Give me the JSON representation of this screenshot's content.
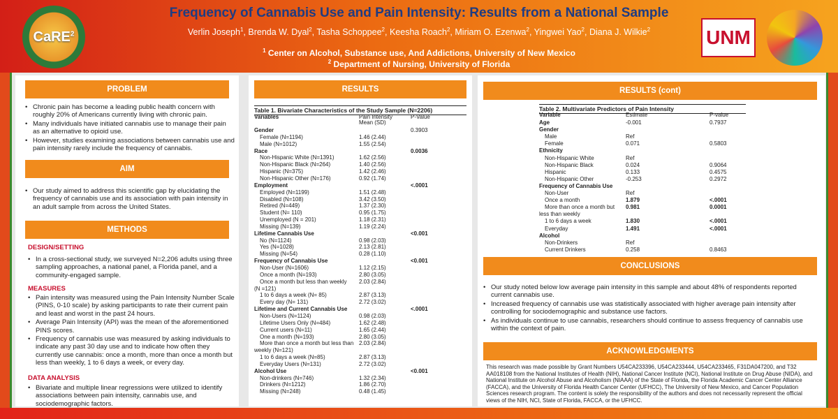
{
  "header": {
    "title": "Frequency of Cannabis Use and Pain Intensity: Results from a National Sample",
    "authors": [
      {
        "name": "Verlin Joseph",
        "sup": "1"
      },
      {
        "name": "Brenda W. Dyal",
        "sup": "2"
      },
      {
        "name": "Tasha Schoppee",
        "sup": "2"
      },
      {
        "name": "Keesha Roach",
        "sup": "2"
      },
      {
        "name": "Miriam O. Ezenwa",
        "sup": "2"
      },
      {
        "name": "Yingwei Yao",
        "sup": "2"
      },
      {
        "name": "Diana J. Wilkie",
        "sup": "2"
      }
    ],
    "affil1_sup": "1",
    "affil1": "Center on Alcohol, Substance use, And Addictions, University of New Mexico",
    "affil2_sup": "2",
    "affil2": "Department of Nursing, University of Florida",
    "logo_left": "CaRE",
    "logo_left_sup": "2",
    "logo_right": "UNM"
  },
  "col1": {
    "problem_title": "PROBLEM",
    "problem": [
      "Chronic pain has become a leading public health concern with roughly 20% of Americans currently living with chronic pain.",
      "Many individuals have initiated cannabis use to manage their pain as an alternative to opioid use.",
      "However, studies examining associations between cannabis use and pain intensity rarely include the frequency of cannabis."
    ],
    "aim_title": "AIM",
    "aim": [
      "Our study aimed to address this scientific gap by elucidating the frequency of cannabis use and its association with pain intensity in an adult sample from across the United States."
    ],
    "methods_title": "METHODS",
    "design_title": "DESIGN/SETTING",
    "design": [
      "In a cross-sectional study, we surveyed N=2,206 adults using three sampling approaches, a national panel, a Florida panel, and a community-engaged sample."
    ],
    "measures_title": "MEASURES",
    "measures": [
      "Pain intensity was measured using the Pain Intensity Number Scale (PINS, 0-10 scale) by asking participants to rate their current pain and least and worst in the past 24 hours.",
      "Average Pain Intensity (API) was the mean of the aforementioned PINS scores.",
      "Frequency of cannabis use was measured by asking individuals to indicate any past 30 day use and to indicate how often they currently use cannabis: once a month, more than once a month but less than weekly, 1 to 6 days a week, or every day."
    ],
    "analysis_title": "DATA ANALYSIS",
    "analysis": [
      "Bivariate and multiple linear regressions were utilized to identify associations between pain intensity, cannabis use, and sociodemographic factors."
    ]
  },
  "col2": {
    "results_title": "RESULTS",
    "table_caption": "Table 1. Bivariate Characteristics of the Study Sample (N=2206)",
    "h_var": "Variables",
    "h_mean1": "Pain Intensity",
    "h_mean2": "Mean (SD)",
    "h_p": "P-Value",
    "rows": [
      {
        "label": "Gender",
        "bold": true,
        "ind": false,
        "mean": "",
        "p": "0.3903",
        "pb": false
      },
      {
        "label": "Female (N=1194)",
        "bold": false,
        "ind": true,
        "mean": "1.46 (2.44)",
        "p": "",
        "pb": false
      },
      {
        "label": "Male (N=1012)",
        "bold": false,
        "ind": true,
        "mean": "1.55 (2.54)",
        "p": "",
        "pb": false
      },
      {
        "label": "Race",
        "bold": true,
        "ind": false,
        "mean": "",
        "p": "0.0036",
        "pb": true
      },
      {
        "label": "Non-Hispanic White (N=1391)",
        "bold": false,
        "ind": true,
        "mean": "1.62 (2.56)",
        "p": "",
        "pb": false
      },
      {
        "label": "Non-Hispanic Black (N=264)",
        "bold": false,
        "ind": true,
        "mean": "1.40 (2.56)",
        "p": "",
        "pb": false
      },
      {
        "label": "Hispanic (N=375)",
        "bold": false,
        "ind": true,
        "mean": "1.42 (2.46)",
        "p": "",
        "pb": false
      },
      {
        "label": "Non-Hispanic Other (N=176)",
        "bold": false,
        "ind": true,
        "mean": "0.92 (1.74)",
        "p": "",
        "pb": false
      },
      {
        "label": "Employment",
        "bold": true,
        "ind": false,
        "mean": "",
        "p": "<.0001",
        "pb": true
      },
      {
        "label": "Employed (N=1199)",
        "bold": false,
        "ind": true,
        "mean": "1.51 (2.48)",
        "p": "",
        "pb": false
      },
      {
        "label": "Disabled (N=108)",
        "bold": false,
        "ind": true,
        "mean": "3.42 (3.50)",
        "p": "",
        "pb": false
      },
      {
        "label": "Retired (N=449)",
        "bold": false,
        "ind": true,
        "mean": "1.37 (2.30)",
        "p": "",
        "pb": false
      },
      {
        "label": "Student (N= 110)",
        "bold": false,
        "ind": true,
        "mean": "0.95 (1.75)",
        "p": "",
        "pb": false
      },
      {
        "label": "Unemployed (N = 201)",
        "bold": false,
        "ind": true,
        "mean": "1.18 (2.31)",
        "p": "",
        "pb": false
      },
      {
        "label": "Missing (N=139)",
        "bold": false,
        "ind": true,
        "mean": "1.19 (2.24)",
        "p": "",
        "pb": false
      },
      {
        "label": "Lifetime Cannabis Use",
        "bold": true,
        "ind": false,
        "mean": "",
        "p": "<0.001",
        "pb": true
      },
      {
        "label": "No (N=1124)",
        "bold": false,
        "ind": true,
        "mean": "0.98 (2.03)",
        "p": "",
        "pb": false
      },
      {
        "label": "Yes (N=1028)",
        "bold": false,
        "ind": true,
        "mean": "2.13 (2.81)",
        "p": "",
        "pb": false
      },
      {
        "label": "Missing (N=54)",
        "bold": false,
        "ind": true,
        "mean": "0.28 (1.10)",
        "p": "",
        "pb": false
      },
      {
        "label": "Frequency of Cannabis Use",
        "bold": true,
        "ind": false,
        "mean": "",
        "p": "<0.001",
        "pb": true
      },
      {
        "label": "Non-User (N=1606)",
        "bold": false,
        "ind": true,
        "mean": "1.12 (2.15)",
        "p": "",
        "pb": false
      },
      {
        "label": "Once a month (N=193)",
        "bold": false,
        "ind": true,
        "mean": "2.80 (3.05)",
        "p": "",
        "pb": false
      },
      {
        "label": "Once a month but less than  weekly",
        "bold": false,
        "ind": true,
        "mean": "2.03 (2.84)",
        "p": "",
        "pb": false
      },
      {
        "label": "(N =121)",
        "bold": false,
        "ind": false,
        "mean": "",
        "p": "",
        "pb": false
      },
      {
        "label": "1 to 6 days a week (N= 85)",
        "bold": false,
        "ind": true,
        "mean": "2.87 (3.13)",
        "p": "",
        "pb": false
      },
      {
        "label": "Every day (N= 131)",
        "bold": false,
        "ind": true,
        "mean": "2.72 (3.02)",
        "p": "",
        "pb": false
      },
      {
        "label": "Lifetime and Current Cannabis Use",
        "bold": true,
        "ind": false,
        "mean": "",
        "p": "<.0001",
        "pb": true
      },
      {
        "label": "Non-Users (N=1124)",
        "bold": false,
        "ind": true,
        "mean": "0.98 (2.03)",
        "p": "",
        "pb": false
      },
      {
        "label": "Lifetime Users Only (N=484)",
        "bold": false,
        "ind": true,
        "mean": "1.62 (2.48)",
        "p": "",
        "pb": false
      },
      {
        "label": "Current users (N=11)",
        "bold": false,
        "ind": true,
        "mean": "1.65 (2.44)",
        "p": "",
        "pb": false
      },
      {
        "label": "One a month (N=193)",
        "bold": false,
        "ind": true,
        "mean": "2.80 (3.05)",
        "p": "",
        "pb": false
      },
      {
        "label": "More than once a month but less than",
        "bold": false,
        "ind": true,
        "mean": "2.03 (2.84)",
        "p": "",
        "pb": false
      },
      {
        "label": "weekly (N=121)",
        "bold": false,
        "ind": false,
        "mean": "",
        "p": "",
        "pb": false
      },
      {
        "label": "1 to 6 days a week (N=85)",
        "bold": false,
        "ind": true,
        "mean": "2.87 (3.13)",
        "p": "",
        "pb": false
      },
      {
        "label": "Everyday Users (N=131)",
        "bold": false,
        "ind": true,
        "mean": "2.72 (3.02)",
        "p": "",
        "pb": false
      },
      {
        "label": "Alcohol Use",
        "bold": true,
        "ind": false,
        "mean": "",
        "p": "<0.001",
        "pb": true
      },
      {
        "label": "Non-drinkers (N=746)",
        "bold": false,
        "ind": true,
        "mean": "1.32 (2.34)",
        "p": "",
        "pb": false
      },
      {
        "label": "Drinkers (N=1212)",
        "bold": false,
        "ind": true,
        "mean": "1.86 (2.70)",
        "p": "",
        "pb": false
      },
      {
        "label": "Missing (N=248)",
        "bold": false,
        "ind": true,
        "mean": "0.48 (1.45)",
        "p": "",
        "pb": false
      }
    ]
  },
  "col3": {
    "results_title": "RESULTS (cont)",
    "table_caption": "Table 2. Multivariate Predictors of Pain Intensity",
    "h_var": "Variable",
    "h_est": "Estimate",
    "h_p": "P-value",
    "rows": [
      {
        "label": "Age",
        "bold": true,
        "ind": false,
        "est": "-0.001",
        "eb": false,
        "p": "0.7937",
        "pb": false
      },
      {
        "label": "Gender",
        "bold": true,
        "ind": false,
        "est": "",
        "eb": false,
        "p": "",
        "pb": false
      },
      {
        "label": "Male",
        "bold": false,
        "ind": true,
        "est": "Ref",
        "eb": false,
        "p": "",
        "pb": false
      },
      {
        "label": "Female",
        "bold": false,
        "ind": true,
        "est": "0.071",
        "eb": false,
        "p": "0.5803",
        "pb": false
      },
      {
        "label": "Ethnicity",
        "bold": true,
        "ind": false,
        "est": "",
        "eb": false,
        "p": "",
        "pb": false
      },
      {
        "label": "Non-Hispanic White",
        "bold": false,
        "ind": true,
        "est": "Ref",
        "eb": false,
        "p": "",
        "pb": false
      },
      {
        "label": "Non-Hispanic Black",
        "bold": false,
        "ind": true,
        "est": "0.024",
        "eb": false,
        "p": "0.9064",
        "pb": false
      },
      {
        "label": "Hispanic",
        "bold": false,
        "ind": true,
        "est": "0.133",
        "eb": false,
        "p": "0.4575",
        "pb": false
      },
      {
        "label": "Non-Hispanic Other",
        "bold": false,
        "ind": true,
        "est": "-0.253",
        "eb": false,
        "p": "0.2972",
        "pb": false
      },
      {
        "label": "Frequency of Cannabis Use",
        "bold": true,
        "ind": false,
        "est": "",
        "eb": false,
        "p": "",
        "pb": false
      },
      {
        "label": "Non-User",
        "bold": false,
        "ind": true,
        "est": "Ref",
        "eb": false,
        "p": "",
        "pb": false
      },
      {
        "label": "Once a month",
        "bold": false,
        "ind": true,
        "est": "1.879",
        "eb": true,
        "p": "<.0001",
        "pb": true
      },
      {
        "label": "More than once a month but",
        "bold": false,
        "ind": true,
        "est": "0.981",
        "eb": true,
        "p": "0.0001",
        "pb": true
      },
      {
        "label": "less than weekly",
        "bold": false,
        "ind": false,
        "est": "",
        "eb": false,
        "p": "",
        "pb": false
      },
      {
        "label": "1 to 6 days a week",
        "bold": false,
        "ind": true,
        "est": "1.830",
        "eb": true,
        "p": "<.0001",
        "pb": true
      },
      {
        "label": "Everyday",
        "bold": false,
        "ind": true,
        "est": "1.491",
        "eb": true,
        "p": "<.0001",
        "pb": true
      },
      {
        "label": "Alcohol",
        "bold": true,
        "ind": false,
        "est": "",
        "eb": false,
        "p": "",
        "pb": false
      },
      {
        "label": "Non-Drinkers",
        "bold": false,
        "ind": true,
        "est": "Ref",
        "eb": false,
        "p": "",
        "pb": false
      },
      {
        "label": "Current Drinkers",
        "bold": false,
        "ind": true,
        "est": "0.258",
        "eb": false,
        "p": "0.8463",
        "pb": false
      }
    ],
    "conclusions_title": "CONCLUSIONS",
    "conclusions": [
      "Our study noted below low average pain intensity in this sample and about 48% of respondents reported current cannabis use.",
      "Increased frequency of cannabis use was statistically associated with higher average pain intensity after controlling for sociodemographic and substance use factors.",
      "As individuals continue to use cannabis, researchers should continue to assess frequency of cannabis use within the context of pain."
    ],
    "ack_title": "ACKNOWLEDGMENTS",
    "ack": "This research was made possible by Grant Numbers U54CA233396, U54CA233444, U54CA233465, F31DA047200, and T32 AA018108 from the National Institutes of Health (NIH), National Cancer Institute (NCI), National Institute on Drug Abuse (NIDA), and National Institute on Alcohol Abuse and Alcoholism (NIAAA) of the State of Florida, the Florida Academic Cancer Center Alliance (FACCA), and the University of Florida Health Cancer Center (UFHCC), The University of New Mexico, and Cancer Population Sciences research program. The content is solely the responsibility of the authors and does not necessarily represent the official views of the NIH, NCI, State of Florida, FACCA, or the UFHCC."
  },
  "colors": {
    "accent": "#f18b1c",
    "title": "#1f3c82",
    "red": "#c8102e"
  }
}
